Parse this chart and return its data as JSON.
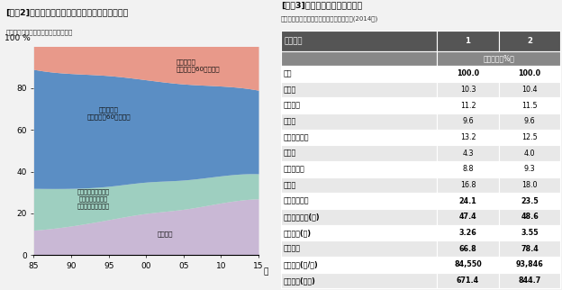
{
  "chart2_title": "[図表2]二人以上の世帯の世帯区分別構成比の推移",
  "chart2_source": "資料：総務省統計局「家計調査報告」",
  "chart2_data": {
    "無職世帯": [
      12.0,
      14.0,
      17.0,
      20.0,
      22.0,
      25.0,
      27.0
    ],
    "個人営業などの世帯": [
      20.0,
      18.0,
      16.0,
      15.0,
      14.0,
      13.0,
      12.0
    ],
    "勤労者世帯_60未満": [
      57.0,
      55.0,
      53.0,
      49.0,
      46.0,
      43.0,
      40.0
    ],
    "勤労者世帯_60以上": [
      11.0,
      13.0,
      14.0,
      16.0,
      18.0,
      19.0,
      21.0
    ]
  },
  "chart2_colors": {
    "無職世帯": "#c9b8d5",
    "個人営業などの世帯": "#9ecfc0",
    "勤労者世帯_60未満": "#5b8ec4",
    "勤労者世帯_60以上": "#e8998a"
  },
  "chart2_label_60above": "勤労者世帯\n（世帯主が60歳以上）",
  "chart2_label_60below": "勤労者世帯\n（世帯主が60歳未満）",
  "chart2_label_kojin": "個人営業などの世帯\n（無職世帯を除く\n勤労者以外の世帯）",
  "chart2_label_mushoku": "無職世帯",
  "chart2_xtick_labels": [
    "85",
    "90",
    "95",
    "00",
    "05",
    "10",
    "15"
  ],
  "chart3_title": "[図表3]有業人員の差による比較",
  "chart3_source": "資料：総務省統計局「全国消費実態調査」(2014年)",
  "chart3_rows": [
    [
      "食料",
      "100.0",
      "100.0",
      true
    ],
    [
      "　穀類",
      "10.3",
      "10.4",
      false
    ],
    [
      "　魚介類",
      "11.2",
      "11.5",
      false
    ],
    [
      "　肉類",
      "9.6",
      "9.6",
      false
    ],
    [
      "　野菜・海藻",
      "13.2",
      "12.5",
      false
    ],
    [
      "　果物",
      "4.3",
      "4.0",
      false
    ],
    [
      "　調理食品",
      "8.8",
      "9.3",
      false
    ],
    [
      "　外食",
      "16.8",
      "18.0",
      false
    ],
    [
      "エンゲル係数",
      "24.1",
      "23.5",
      true
    ],
    [
      "世帯主の年齢(歳)",
      "47.4",
      "48.6",
      true
    ],
    [
      "世帯人員(人)",
      "3.26",
      "3.55",
      true
    ],
    [
      "持ち家率",
      "66.8",
      "78.4",
      true
    ],
    [
      "食料支出(円/月)",
      "84,550",
      "93,846",
      true
    ],
    [
      "年間収入(万円)",
      "671.4",
      "844.7",
      true
    ]
  ]
}
